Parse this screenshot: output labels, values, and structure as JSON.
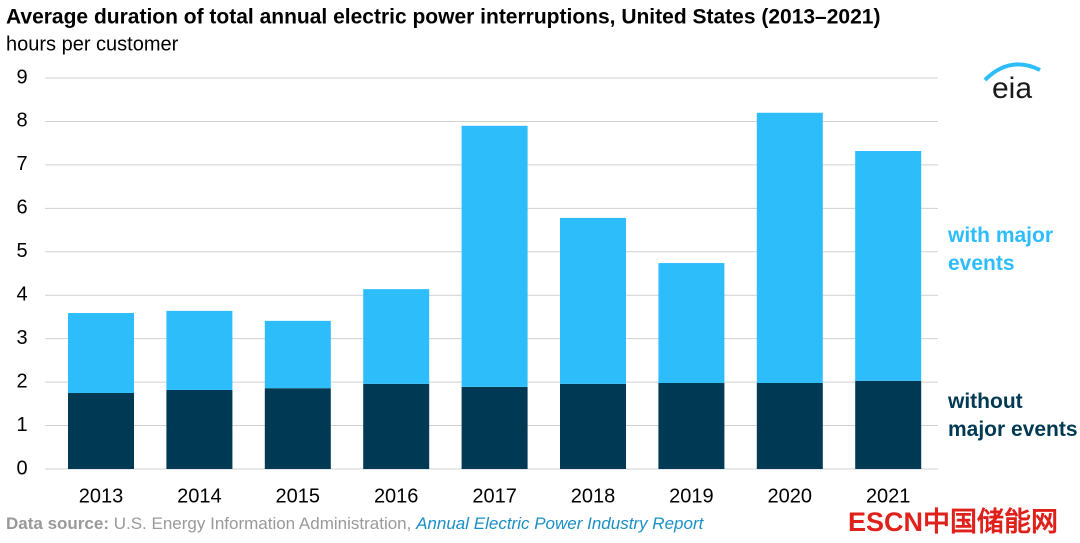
{
  "chart_data": {
    "type": "stacked-bar",
    "title": "Average duration of total annual electric power interruptions, United States (2013–2021)",
    "subtitle": "hours per customer",
    "categories": [
      "2013",
      "2014",
      "2015",
      "2016",
      "2017",
      "2018",
      "2019",
      "2020",
      "2021"
    ],
    "series": [
      {
        "name": "without major events",
        "color": "#003953",
        "values": [
          1.75,
          1.82,
          1.86,
          1.96,
          1.89,
          1.96,
          1.98,
          1.98,
          2.03
        ]
      },
      {
        "name": "with major events",
        "color": "#2dbdfb",
        "values": [
          1.84,
          1.82,
          1.55,
          2.18,
          6.01,
          3.82,
          2.76,
          6.22,
          5.29
        ]
      }
    ],
    "ylim": [
      0,
      9
    ],
    "yticks": [
      0,
      1,
      2,
      3,
      4,
      5,
      6,
      7,
      8,
      9
    ],
    "grid": true,
    "source_label": "Data source:",
    "source": "U.S. Energy Information Administration,",
    "source_report": "Annual Electric Power Industry Report",
    "logo": "eia",
    "watermark": "ESCN中国储能网"
  }
}
